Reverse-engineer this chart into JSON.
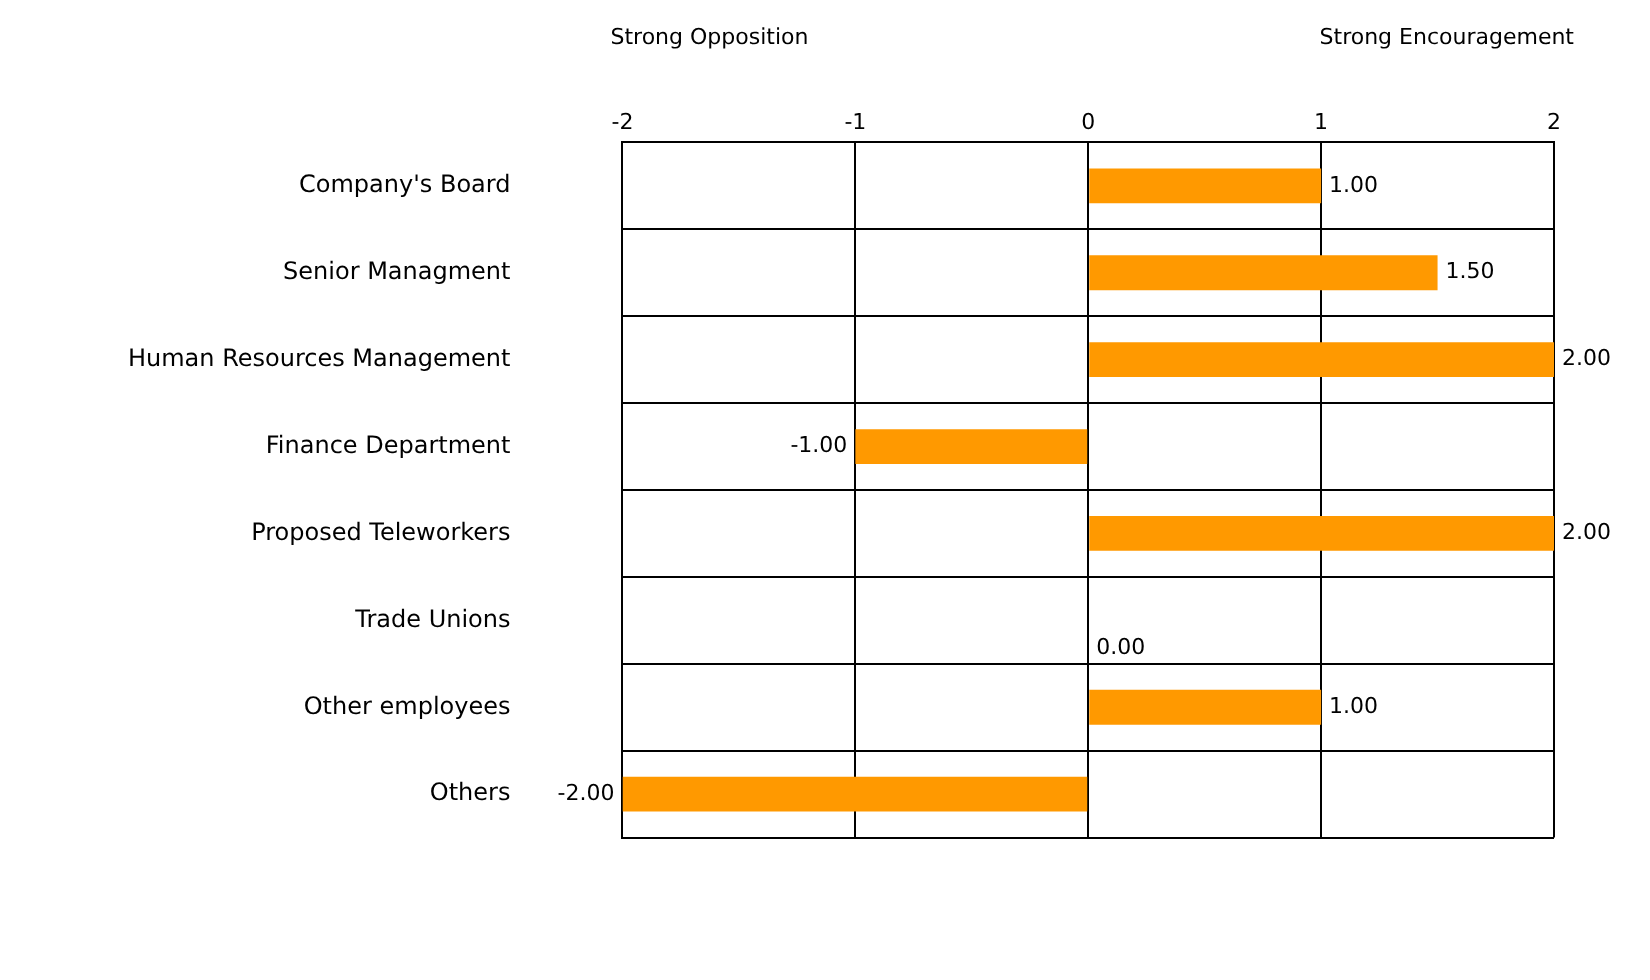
{
  "chart_data": {
    "type": "bar",
    "orientation": "horizontal",
    "categories": [
      "Company's Board",
      "Senior Managment",
      "Human Resources Management",
      "Finance Department",
      "Proposed Teleworkers",
      "Trade Unions",
      "Other employees",
      "Others"
    ],
    "values": [
      1,
      1.5,
      2,
      -1,
      2,
      0,
      1,
      -2
    ],
    "value_labels": [
      "1.00",
      "1.50",
      "2.00",
      "-1.00",
      "2.00",
      "0.00",
      "1.00",
      "-2.00"
    ],
    "color": "#ff9900",
    "xlim": [
      -2,
      2
    ],
    "xticks": [
      -2,
      -1,
      0,
      1,
      2
    ],
    "grid": true,
    "legend": false,
    "annotations": [
      "Strong Opposition",
      "Strong Encouragement"
    ]
  }
}
